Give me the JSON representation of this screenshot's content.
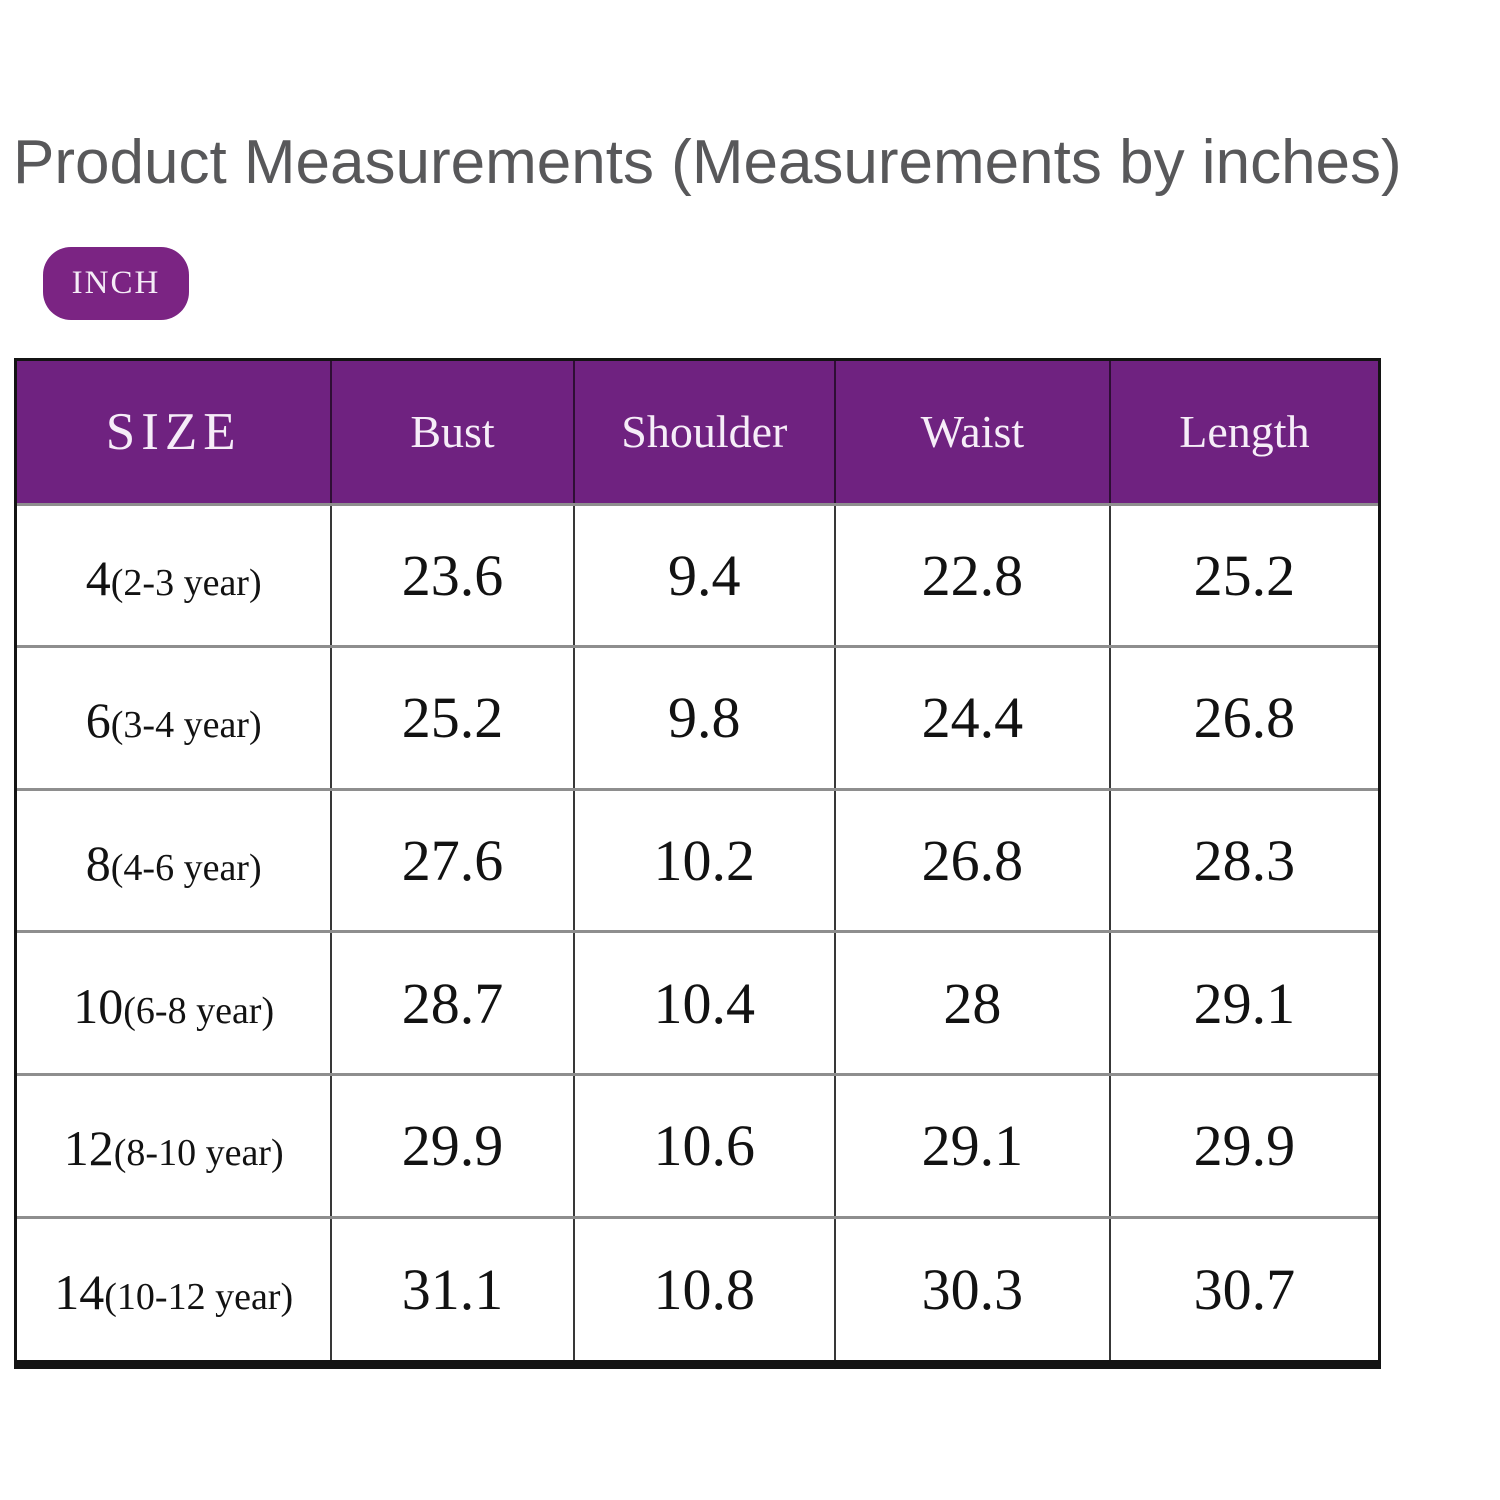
{
  "page": {
    "title": "Product Measurements (Measurements by inches)",
    "unit_badge_label": "INCH"
  },
  "colors": {
    "header_purple": "#6f2280",
    "badge_purple": "#7b2483",
    "title_gray": "#58585a",
    "outer_border_black": "#141414",
    "row_divider_gray": "#8e8e8e",
    "header_text_white": "#f6edf8"
  },
  "table": {
    "columns": [
      "SIZE",
      "Bust",
      "Shoulder",
      "Waist",
      "Length"
    ],
    "rows": [
      {
        "size": "4",
        "age_range": "(2-3 year)",
        "bust": "23.6",
        "shoulder": "9.4",
        "waist": "22.8",
        "length": "25.2"
      },
      {
        "size": "6",
        "age_range": "(3-4 year)",
        "bust": "25.2",
        "shoulder": "9.8",
        "waist": "24.4",
        "length": "26.8"
      },
      {
        "size": "8",
        "age_range": "(4-6 year)",
        "bust": "27.6",
        "shoulder": "10.2",
        "waist": "26.8",
        "length": "28.3"
      },
      {
        "size": "10",
        "age_range": "(6-8 year)",
        "bust": "28.7",
        "shoulder": "10.4",
        "waist": "28",
        "length": "29.1"
      },
      {
        "size": "12",
        "age_range": "(8-10 year)",
        "bust": "29.9",
        "shoulder": "10.6",
        "waist": "29.1",
        "length": "29.9"
      },
      {
        "size": "14",
        "age_range": "(10-12 year)",
        "bust": "31.1",
        "shoulder": "10.8",
        "waist": "30.3",
        "length": "30.7"
      }
    ]
  }
}
